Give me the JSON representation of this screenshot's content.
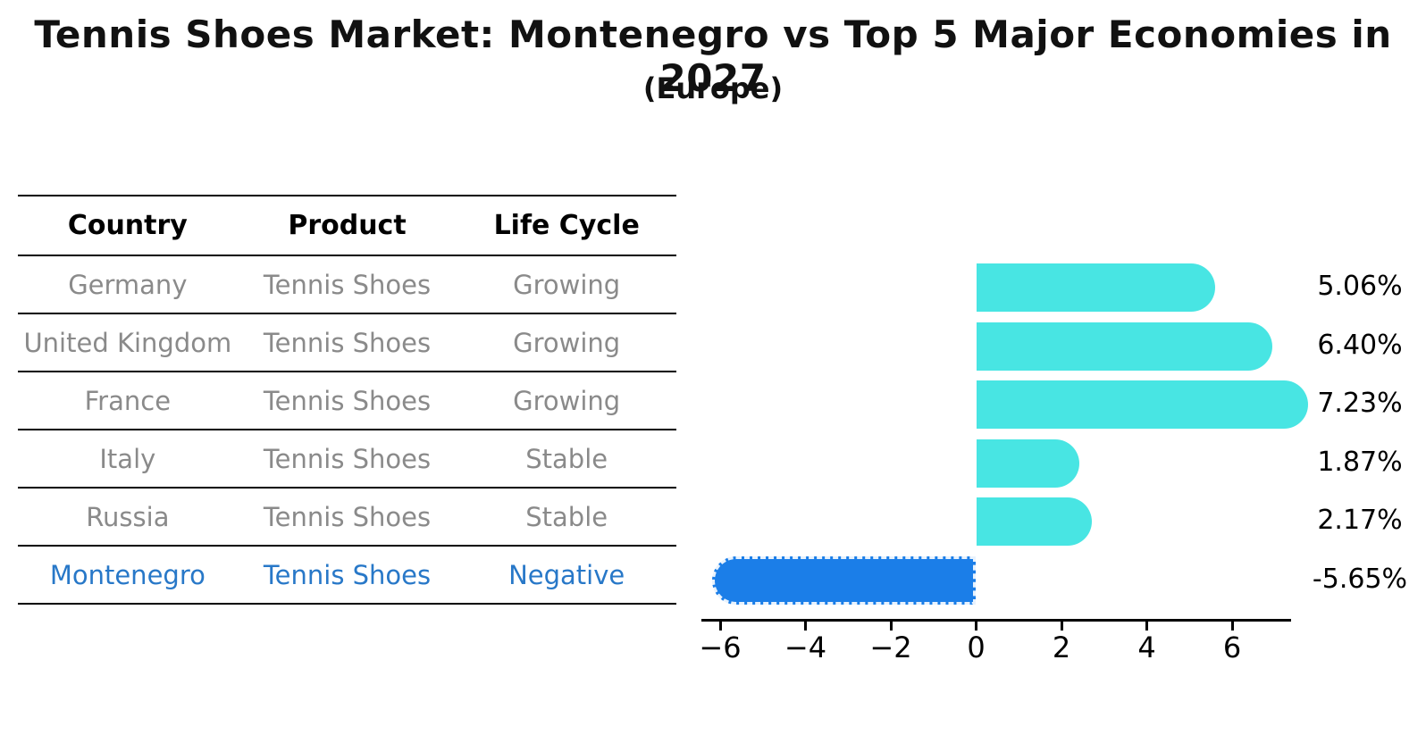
{
  "title": "Tennis Shoes Market: Montenegro vs Top 5 Major Economies in 2027",
  "subtitle": "(Europe)",
  "table": {
    "headers": [
      "Country",
      "Product",
      "Life Cycle"
    ],
    "rows": [
      {
        "country": "Germany",
        "product": "Tennis Shoes",
        "life_cycle": "Growing",
        "highlight": false
      },
      {
        "country": "United Kingdom",
        "product": "Tennis Shoes",
        "life_cycle": "Growing",
        "highlight": false
      },
      {
        "country": "France",
        "product": "Tennis Shoes",
        "life_cycle": "Growing",
        "highlight": false
      },
      {
        "country": "Italy",
        "product": "Tennis Shoes",
        "life_cycle": "Stable",
        "highlight": false
      },
      {
        "country": "Russia",
        "product": "Tennis Shoes",
        "life_cycle": "Stable",
        "highlight": false
      },
      {
        "country": "Montenegro",
        "product": "Tennis Shoes",
        "life_cycle": "Negative",
        "highlight": true
      }
    ]
  },
  "chart_data": {
    "type": "bar",
    "orientation": "horizontal",
    "title": "Tennis Shoes Market: Montenegro vs Top 5 Major Economies in 2027",
    "subtitle": "(Europe)",
    "categories": [
      "Germany",
      "United Kingdom",
      "France",
      "Italy",
      "Russia",
      "Montenegro"
    ],
    "values": [
      5.06,
      6.4,
      7.23,
      1.87,
      2.17,
      -5.65
    ],
    "value_labels": [
      "5.06%",
      "6.40%",
      "7.23%",
      "1.87%",
      "2.17%",
      "-5.65%"
    ],
    "x_tick_labels": [
      "−6",
      "−4",
      "−2",
      "0",
      "2",
      "4",
      "6"
    ],
    "x_tick_values": [
      -6,
      -4,
      -2,
      0,
      2,
      4,
      6
    ],
    "xlim": [
      -6.45,
      7.4
    ],
    "xlabel": "",
    "ylabel": "",
    "grid": false,
    "legend": false,
    "bar_style": {
      "rounded_caps": true,
      "negative_bar_edge": "dashed-white"
    }
  },
  "colors": {
    "positive_bar": "#48e5e3",
    "negative_bar": "#1b7ee8",
    "highlight_text": "#2878c8",
    "table_text": "#8a8a8a",
    "axis": "#000000",
    "background": "#ffffff"
  }
}
